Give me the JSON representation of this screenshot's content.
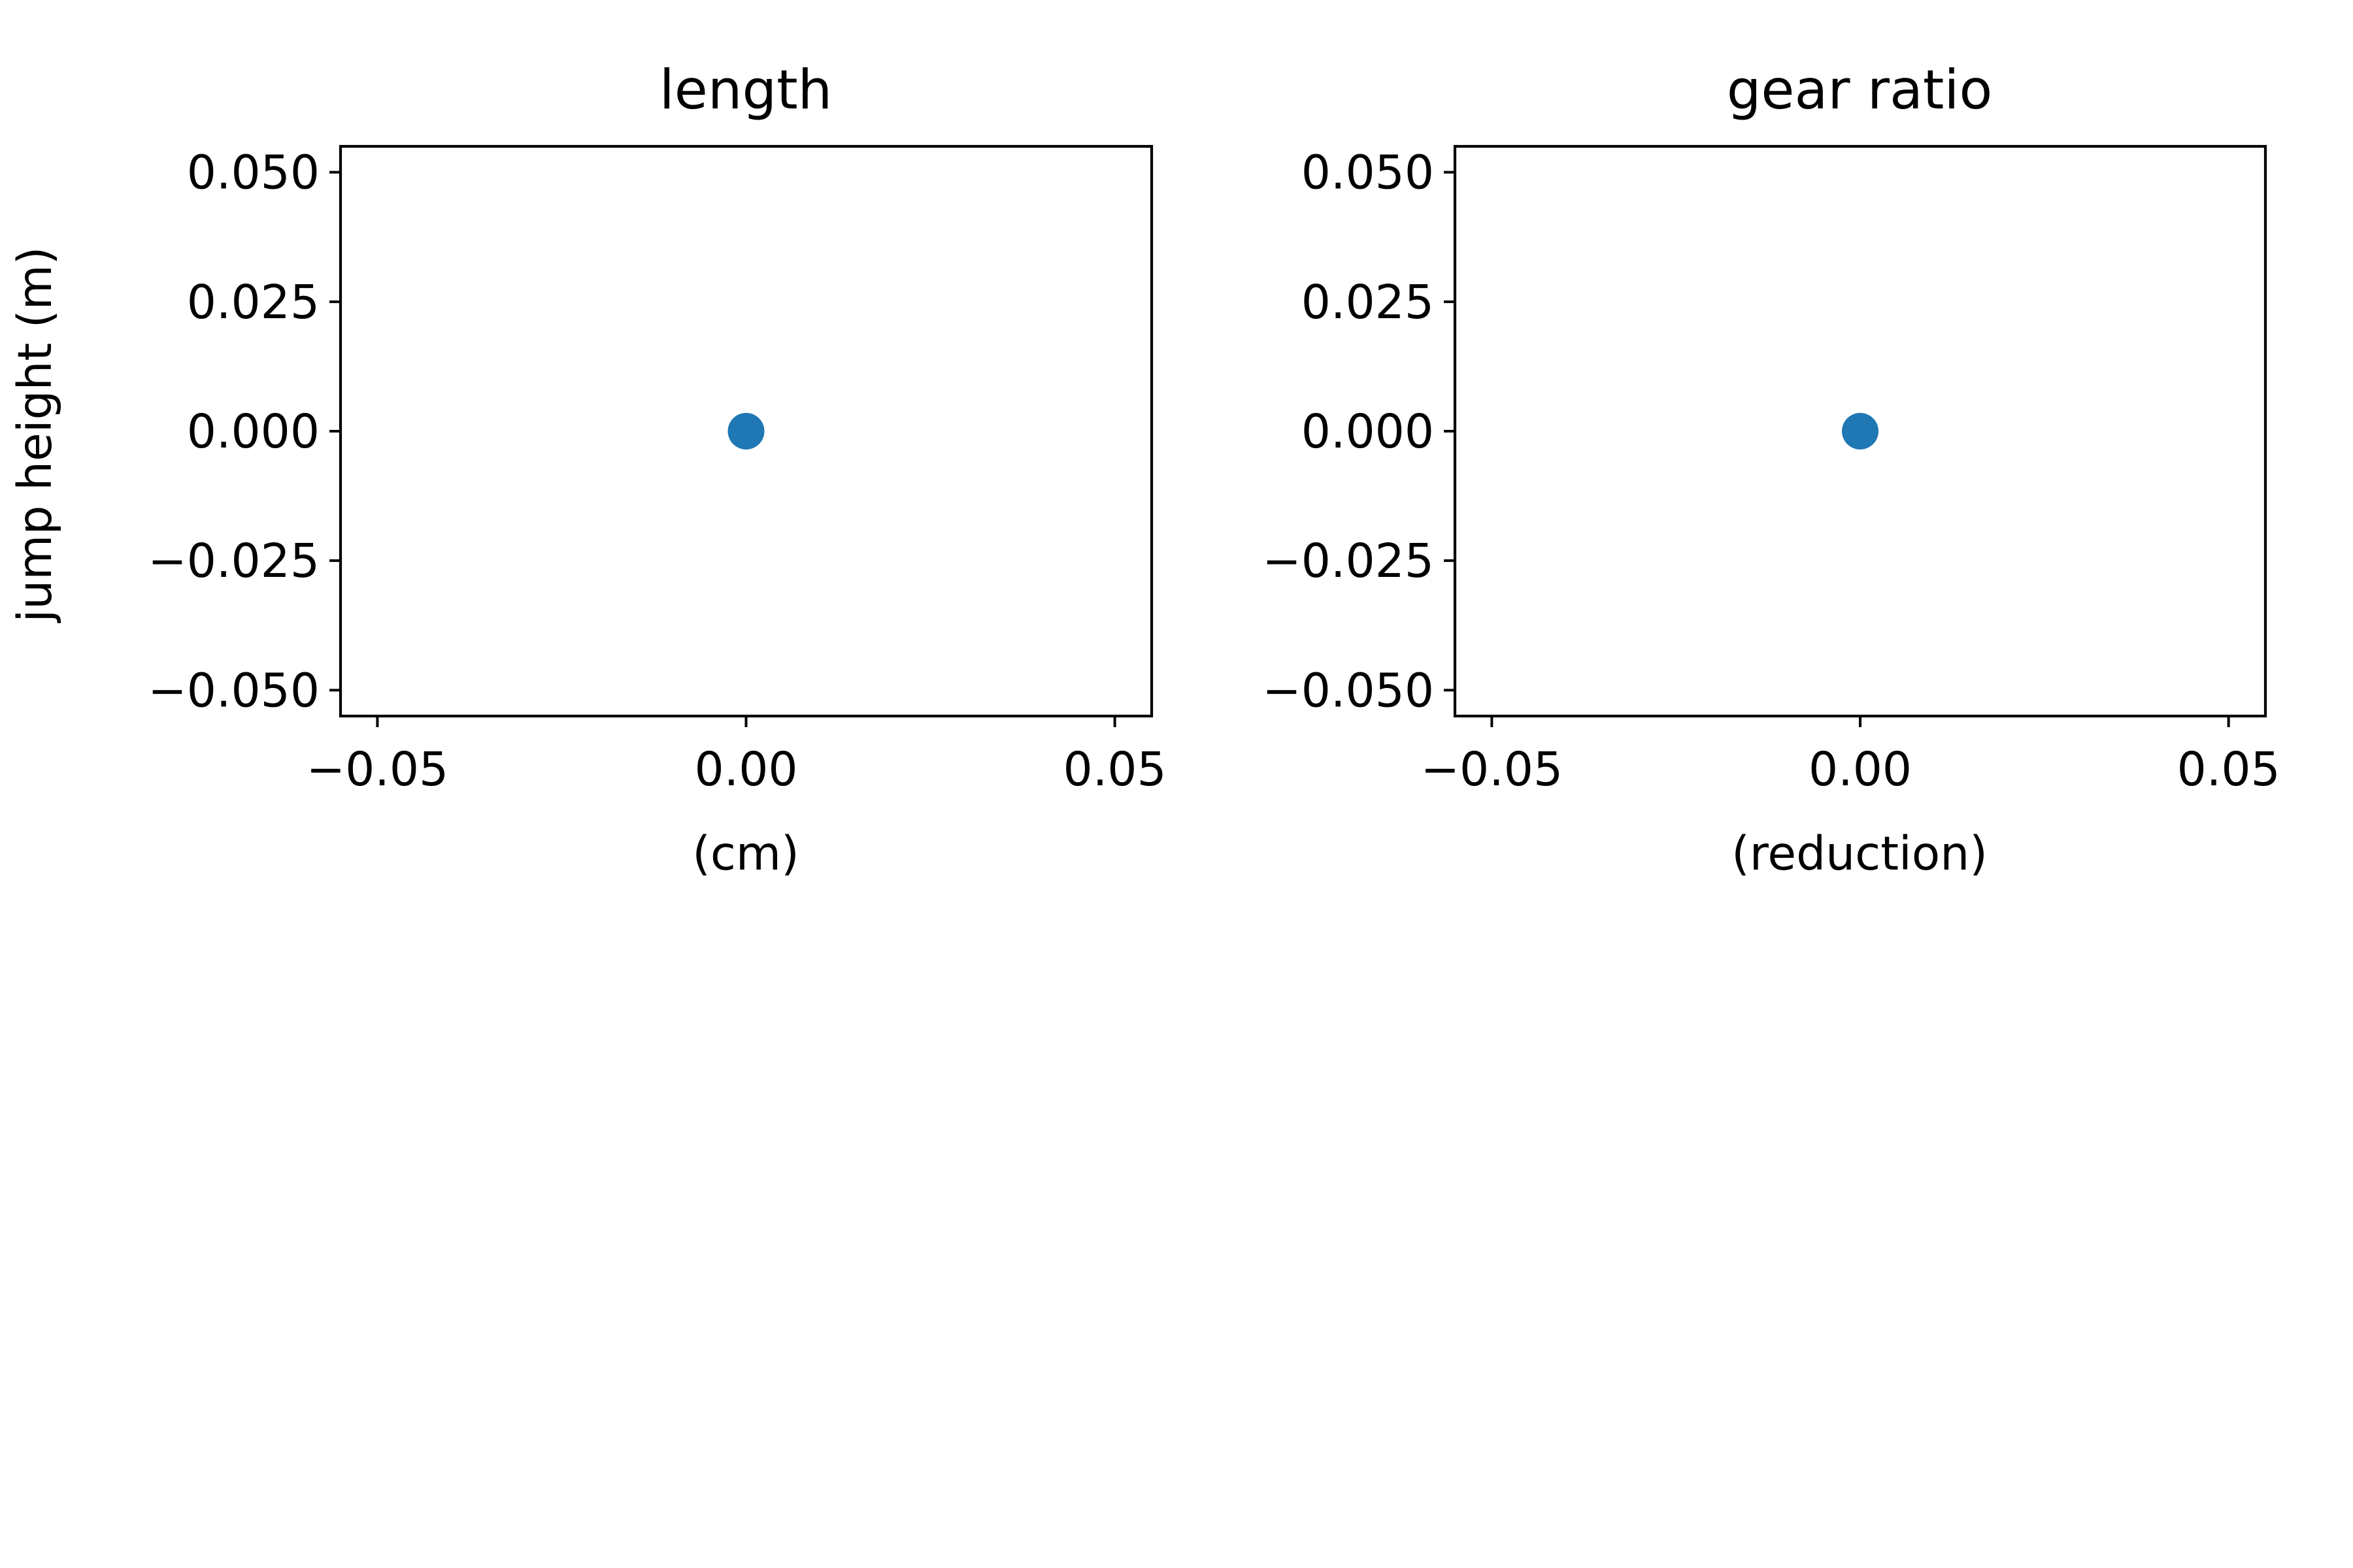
{
  "figure": {
    "shared_ylabel": "jump height (m)"
  },
  "chart_data": [
    {
      "type": "scatter",
      "title": "length",
      "xlabel": "(cm)",
      "ylabel": "jump height (m)",
      "xlim": [
        -0.055,
        0.055
      ],
      "ylim": [
        -0.055,
        0.055
      ],
      "xticks": [
        -0.05,
        0.0,
        0.05
      ],
      "xtick_labels": [
        "−0.05",
        "0.00",
        "0.05"
      ],
      "yticks": [
        0.05,
        0.025,
        0.0,
        -0.025,
        -0.05
      ],
      "ytick_labels": [
        "0.050",
        "0.025",
        "0.000",
        "−0.025",
        "−0.050"
      ],
      "grid": false,
      "color": "#1f77b4",
      "points": [
        {
          "x": 0.0,
          "y": 0.0
        }
      ]
    },
    {
      "type": "scatter",
      "title": "gear ratio",
      "xlabel": "(reduction)",
      "ylabel": "",
      "xlim": [
        -0.055,
        0.055
      ],
      "ylim": [
        -0.055,
        0.055
      ],
      "xticks": [
        -0.05,
        0.0,
        0.05
      ],
      "xtick_labels": [
        "−0.05",
        "0.00",
        "0.05"
      ],
      "yticks": [
        0.05,
        0.025,
        0.0,
        -0.025,
        -0.05
      ],
      "ytick_labels": [
        "0.050",
        "0.025",
        "0.000",
        "−0.025",
        "−0.050"
      ],
      "grid": false,
      "color": "#1f77b4",
      "points": [
        {
          "x": 0.0,
          "y": 0.0
        }
      ]
    }
  ]
}
